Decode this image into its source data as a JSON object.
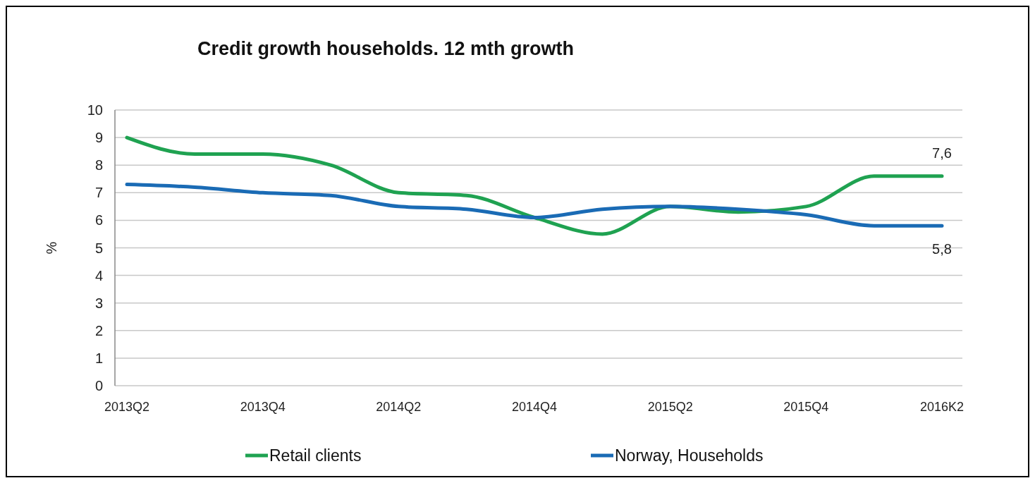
{
  "chart_data": {
    "type": "line",
    "title": "Credit growth households. 12 mth growth",
    "ylabel": "%",
    "categories": [
      "2013Q2",
      null,
      "2013Q4",
      null,
      "2014Q2",
      null,
      "2014Q4",
      null,
      "2015Q2",
      null,
      "2015Q4",
      null,
      "2016K2"
    ],
    "series": [
      {
        "name": "Retail clients",
        "color": "#1fa251",
        "values": [
          9.0,
          8.4,
          8.4,
          8.0,
          7.0,
          6.9,
          6.1,
          5.5,
          6.5,
          6.3,
          6.5,
          7.6,
          7.6
        ],
        "value_labels": [
          null,
          null,
          null,
          null,
          null,
          null,
          null,
          null,
          null,
          null,
          null,
          null,
          "7,6"
        ]
      },
      {
        "name": "Norway, Households",
        "color": "#1a6bb5",
        "values": [
          7.3,
          7.2,
          7.0,
          6.9,
          6.5,
          6.4,
          6.1,
          6.4,
          6.5,
          6.4,
          6.2,
          5.8,
          5.8
        ],
        "value_labels": [
          null,
          null,
          null,
          null,
          null,
          null,
          null,
          null,
          null,
          null,
          null,
          null,
          "5,8"
        ]
      }
    ],
    "ylim": [
      0,
      10
    ],
    "yticks": [
      0,
      1,
      2,
      3,
      4,
      5,
      6,
      7,
      8,
      9,
      10
    ],
    "grid": "y",
    "legend": "bottom",
    "line_style": "solid",
    "marker": "none"
  }
}
